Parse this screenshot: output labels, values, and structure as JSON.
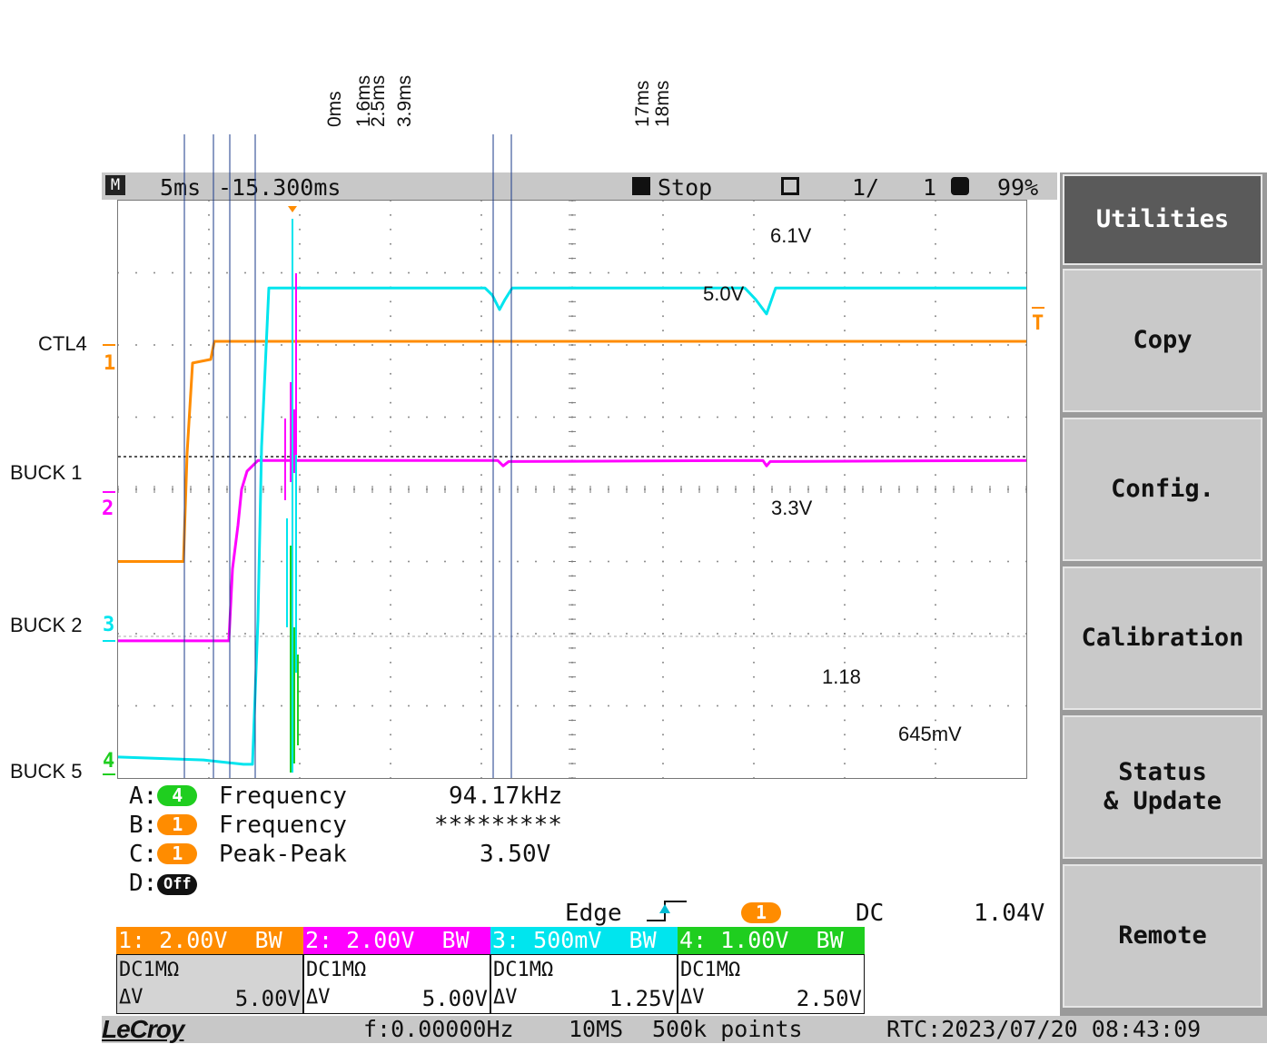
{
  "topbar": {
    "mode": "M",
    "timebase": "5ms",
    "delay": "-15.300ms",
    "run_state": "Stop",
    "sweeps": "1/",
    "sweeps_total": "1",
    "battery": "99%"
  },
  "menu": {
    "items": [
      {
        "label": "Utilities",
        "active": true
      },
      {
        "label": "Copy",
        "active": false
      },
      {
        "label": "Config.",
        "active": false
      },
      {
        "label": "Calibration",
        "active": false
      },
      {
        "label": "Status\n& Update",
        "active": false
      },
      {
        "label": "Remote",
        "active": false
      }
    ]
  },
  "cursor_labels": [
    "0ms",
    "1.6ms",
    "2.5ms",
    "3.9ms",
    "17ms",
    "18ms"
  ],
  "channel_names": {
    "ch1": "CTL4",
    "ch2": "BUCK 1",
    "ch3": "BUCK 2",
    "ch4": "BUCK 5"
  },
  "channel_markers": {
    "ch1": "1",
    "ch2": "2",
    "ch3": "3",
    "ch4": "4",
    "trigger": "T"
  },
  "annotations": {
    "ch1_level": "6.1V",
    "ch2_level": "5.0V",
    "ch3_level": "3.3V",
    "ch4_level": "1.18",
    "ch4_dip": "645mV"
  },
  "measurements": [
    {
      "slot": "A:",
      "channel": "4",
      "channel_color": "#1fce1f",
      "name": "Frequency",
      "value": "94.17kHz"
    },
    {
      "slot": "B:",
      "channel": "1",
      "channel_color": "#ff8c00",
      "name": "Frequency",
      "value": "*********"
    },
    {
      "slot": "C:",
      "channel": "1",
      "channel_color": "#ff8c00",
      "name": "Peak-Peak",
      "value": "3.50V"
    },
    {
      "slot": "D:",
      "channel": "Off",
      "channel_color": "#111111",
      "name": "",
      "value": ""
    }
  ],
  "trigger": {
    "type": "Edge",
    "source": "1",
    "coupling": "DC",
    "level": "1.04V"
  },
  "channels": [
    {
      "header": "1: 2.00V  BW",
      "color": "#ff8c00",
      "coupling": "DC1MΩ",
      "dv_label": "ΔV",
      "dv_value": "5.00V"
    },
    {
      "header": "2: 2.00V  BW",
      "color": "#ff00ff",
      "coupling": "DC1MΩ",
      "dv_label": "ΔV",
      "dv_value": "5.00V"
    },
    {
      "header": "3: 500mV  BW",
      "color": "#00e5ee",
      "coupling": "DC1MΩ",
      "dv_label": "ΔV",
      "dv_value": "1.25V"
    },
    {
      "header": "4: 1.00V  BW",
      "color": "#1fce1f",
      "coupling": "DC1MΩ",
      "dv_label": "ΔV",
      "dv_value": "2.50V"
    }
  ],
  "bottombar": {
    "brand": "LeCroy",
    "frequency": "f:0.00000Hz",
    "sample_rate": "10MS",
    "points": "500k points",
    "rtc": "RTC:2023/07/20 08:43:09"
  },
  "chart_data": {
    "type": "line",
    "title": "",
    "xlabel": "",
    "ylabel": "",
    "x_unit": "ms",
    "xlim": [
      -3.7,
      46.3
    ],
    "grid": true,
    "cursors_ms": [
      0,
      1.6,
      2.5,
      3.9,
      17,
      18
    ],
    "series": [
      {
        "name": "CTL4",
        "color": "#ff8c00",
        "points": [
          [
            -3.7,
            0
          ],
          [
            -0.1,
            0
          ],
          [
            0.1,
            3.0
          ],
          [
            0.4,
            5.5
          ],
          [
            1.4,
            5.6
          ],
          [
            1.6,
            6.1
          ],
          [
            46.3,
            6.1
          ]
        ]
      },
      {
        "name": "BUCK 1",
        "color": "#ff00ff",
        "points": [
          [
            -3.7,
            0
          ],
          [
            2.4,
            0
          ],
          [
            2.6,
            2.0
          ],
          [
            2.9,
            3.2
          ],
          [
            3.1,
            4.2
          ],
          [
            3.4,
            4.7
          ],
          [
            4.0,
            5.0
          ],
          [
            17.2,
            5.0
          ],
          [
            17.5,
            4.85
          ],
          [
            17.8,
            4.97
          ],
          [
            31.8,
            5.0
          ],
          [
            32.0,
            4.85
          ],
          [
            32.2,
            4.97
          ],
          [
            46.3,
            5.0
          ]
        ]
      },
      {
        "name": "BUCK 2",
        "color": "#00e5ee",
        "points": [
          [
            -3.7,
            0.05
          ],
          [
            1.0,
            0.03
          ],
          [
            3.2,
            0.0
          ],
          [
            3.7,
            0.0
          ],
          [
            4.0,
            1.0
          ],
          [
            4.2,
            2.2
          ],
          [
            4.6,
            3.3
          ],
          [
            16.5,
            3.3
          ],
          [
            16.9,
            3.25
          ],
          [
            17.3,
            3.15
          ],
          [
            17.6,
            3.22
          ],
          [
            18.0,
            3.3
          ],
          [
            30.8,
            3.3
          ],
          [
            31.4,
            3.22
          ],
          [
            32.0,
            3.12
          ],
          [
            32.5,
            3.3
          ],
          [
            46.3,
            3.3
          ]
        ]
      },
      {
        "name": "BUCK 5",
        "color": "#1fce1f",
        "points": [
          [
            -3.7,
            0
          ],
          [
            3.8,
            0
          ],
          [
            4.0,
            1.18
          ],
          [
            16.4,
            1.18
          ],
          [
            16.8,
            0.98
          ],
          [
            17.2,
            0.8
          ],
          [
            17.4,
            0.645
          ],
          [
            17.6,
            1.18
          ],
          [
            29.3,
            1.18
          ],
          [
            29.7,
            0.98
          ],
          [
            30.1,
            0.8
          ],
          [
            30.3,
            0.645
          ],
          [
            30.5,
            1.18
          ],
          [
            46.3,
            1.18
          ]
        ]
      }
    ],
    "offsets_div": {
      "CTL4": 5.0,
      "BUCK 1": 6.1,
      "BUCK 2": 7.81,
      "BUCK 5": 9.92
    },
    "scales": {
      "CTL4": 2.0,
      "BUCK 1": 2.0,
      "BUCK 2": 0.5,
      "BUCK 5": 1.0
    },
    "div_ms": 5
  }
}
